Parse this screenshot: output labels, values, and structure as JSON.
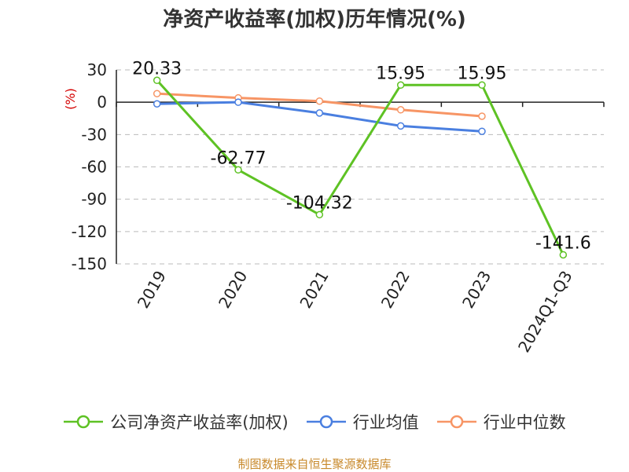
{
  "colors": {
    "company": "#5ec224",
    "industry_avg": "#4a7fe0",
    "industry_median": "#f79565",
    "grid": "#bbbbbb",
    "axis": "#222222",
    "unit": "#d40000",
    "source": "#c8892b"
  },
  "chart_data": {
    "type": "line",
    "title": "净资产收益率(加权)历年情况(%)",
    "ylabel": "(%)",
    "categories": [
      "2019",
      "2020",
      "2021",
      "2022",
      "2023",
      "2024Q1-Q3"
    ],
    "ylim": [
      -150,
      30
    ],
    "yticks": [
      30,
      0,
      -30,
      -60,
      -90,
      -120,
      -150
    ],
    "grid": true,
    "legend_position": "bottom",
    "series": [
      {
        "name": "公司净资产收益率(加权)",
        "color": "#5ec224",
        "values": [
          20.33,
          -62.77,
          -104.32,
          15.95,
          15.95,
          -141.6
        ],
        "labels": [
          "20.33",
          "-62.77",
          "-104.32",
          "15.95",
          "15.95",
          "-141.6"
        ]
      },
      {
        "name": "行业均值",
        "color": "#4a7fe0",
        "values": [
          -1.5,
          0,
          -10,
          -22,
          -27,
          null
        ]
      },
      {
        "name": "行业中位数",
        "color": "#f79565",
        "values": [
          8,
          4,
          1,
          -7,
          -13,
          null
        ]
      }
    ]
  },
  "legend": {
    "items": [
      {
        "label": "公司净资产收益率(加权)",
        "color": "#5ec224"
      },
      {
        "label": "行业均值",
        "color": "#4a7fe0"
      },
      {
        "label": "行业中位数",
        "color": "#f79565"
      }
    ]
  },
  "footer": {
    "source": "制图数据来自恒生聚源数据库"
  }
}
